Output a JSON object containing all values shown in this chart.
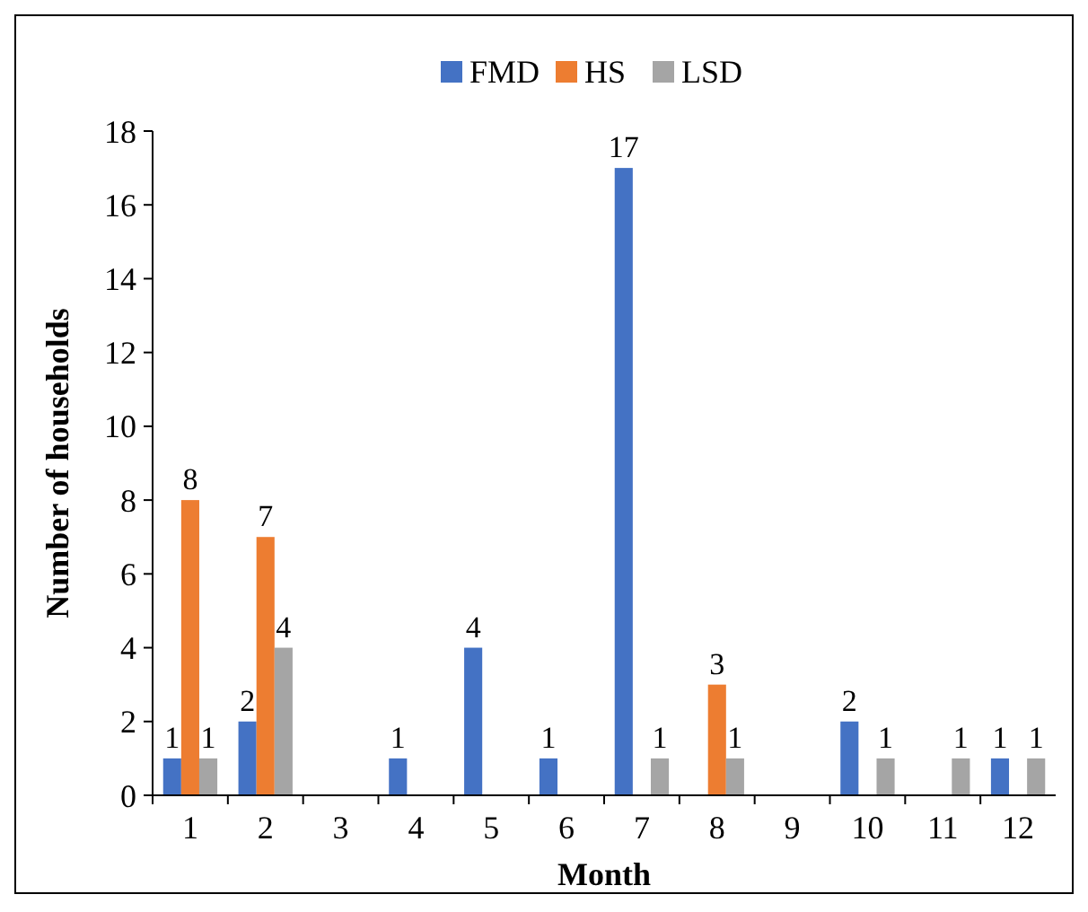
{
  "chart_data": {
    "type": "bar",
    "xlabel": "Month",
    "ylabel": "Number of households",
    "categories": [
      "1",
      "2",
      "3",
      "4",
      "5",
      "6",
      "7",
      "8",
      "9",
      "10",
      "11",
      "12"
    ],
    "series": [
      {
        "name": "FMD",
        "color": "#4472c4",
        "values": [
          1,
          2,
          0,
          1,
          4,
          1,
          17,
          0,
          0,
          2,
          0,
          1
        ],
        "value_labels": [
          "1",
          "2",
          null,
          "1",
          "4",
          "1",
          "17",
          null,
          null,
          "2",
          null,
          "1"
        ]
      },
      {
        "name": "HS",
        "color": "#ed7d31",
        "values": [
          8,
          7,
          0,
          0,
          0,
          0,
          0,
          3,
          0,
          0,
          0,
          0
        ],
        "value_labels": [
          "8",
          "7",
          null,
          null,
          null,
          null,
          null,
          "3",
          null,
          null,
          null,
          null
        ]
      },
      {
        "name": "LSD",
        "color": "#a5a5a5",
        "values": [
          1,
          4,
          0,
          0,
          0,
          0,
          1,
          1,
          0,
          1,
          1,
          1
        ],
        "value_labels": [
          "1",
          "4",
          null,
          null,
          null,
          null,
          "1",
          "1",
          null,
          "1",
          "1",
          "1"
        ]
      }
    ],
    "ylim": [
      0,
      18
    ],
    "yticks": [
      0,
      2,
      4,
      6,
      8,
      10,
      12,
      14,
      16,
      18
    ],
    "grid": false,
    "legend": "top"
  }
}
